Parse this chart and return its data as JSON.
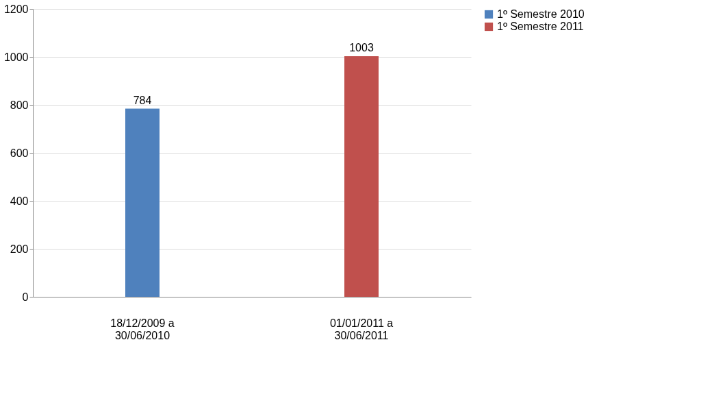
{
  "chart_data": {
    "type": "bar",
    "categories": [
      "18/12/2009 a\n30/06/2010",
      "01/01/2011 a\n30/06/2011"
    ],
    "series": [
      {
        "name": "1º Semestre 2010",
        "color": "#4f81bd",
        "values": [
          784,
          null
        ]
      },
      {
        "name": "1º Semestre 2011",
        "color": "#c0504d",
        "values": [
          null,
          1003
        ]
      }
    ],
    "ylim": [
      0,
      1200
    ],
    "yticks": [
      0,
      200,
      400,
      600,
      800,
      1000,
      1200
    ],
    "grid": "y",
    "legend": "right",
    "data_labels": true
  }
}
